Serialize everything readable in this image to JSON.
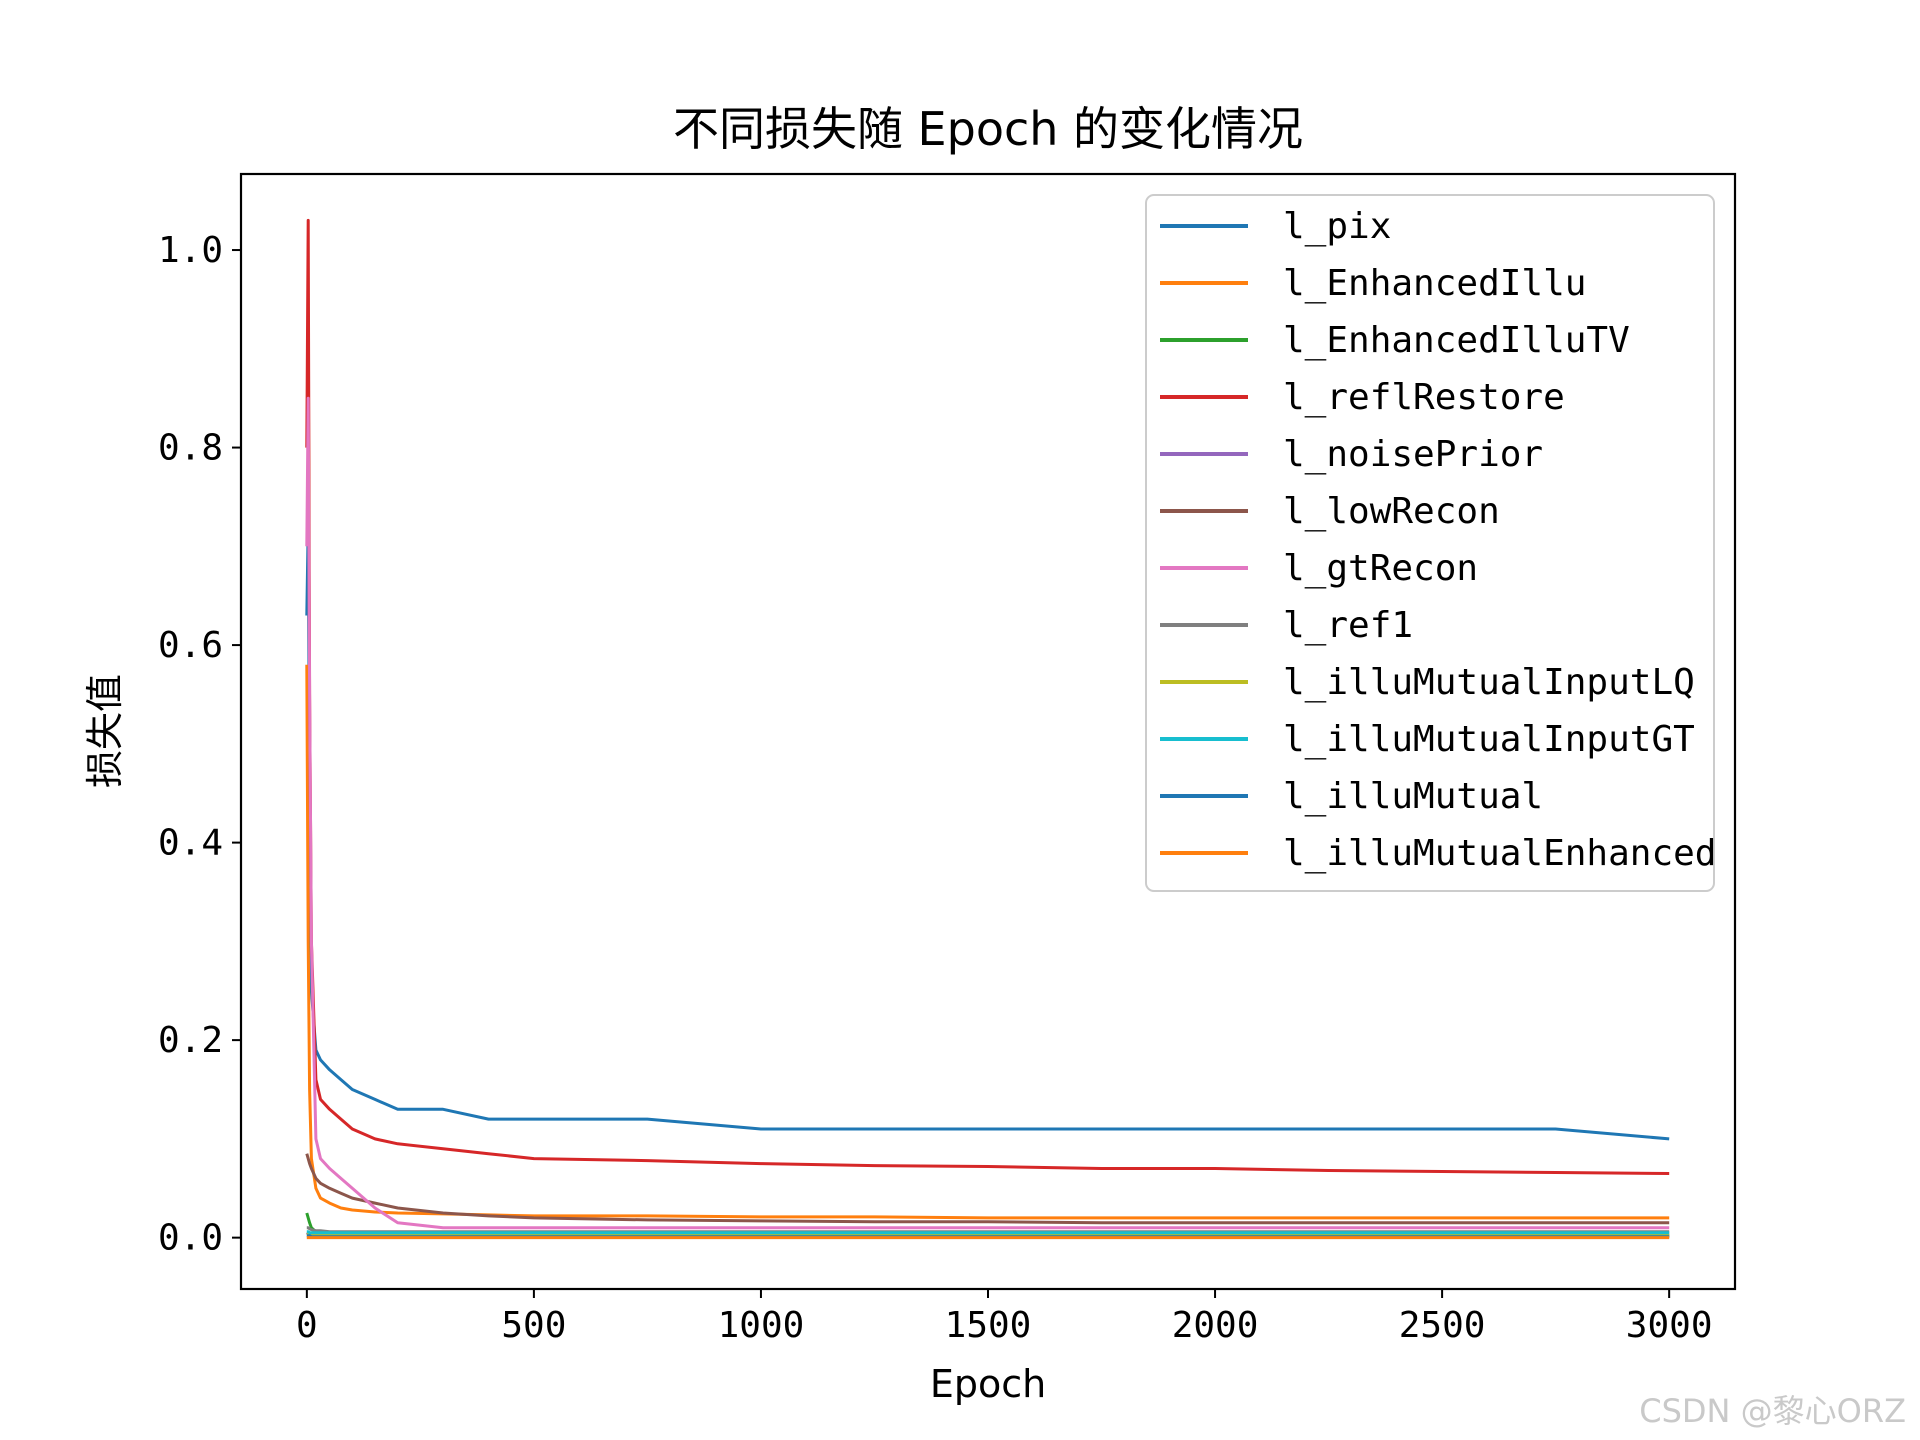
{
  "chart_data": {
    "type": "line",
    "title": "不同损失随 Epoch 的变化情况",
    "xlabel": "Epoch",
    "ylabel": "损失值",
    "xlim": [
      -145,
      3145
    ],
    "ylim": [
      -0.052,
      1.077
    ],
    "xticks": [
      0,
      500,
      1000,
      1500,
      2000,
      2500,
      3000
    ],
    "xtick_labels": [
      "0",
      "500",
      "1000",
      "1500",
      "2000",
      "2500",
      "3000"
    ],
    "yticks": [
      0.0,
      0.2,
      0.4,
      0.6,
      0.8,
      1.0
    ],
    "ytick_labels": [
      "0.0",
      "0.2",
      "0.4",
      "0.6",
      "0.8",
      "1.0"
    ],
    "grid": false,
    "legend_position": "upper right",
    "x": [
      0,
      3,
      6,
      10,
      20,
      30,
      50,
      75,
      100,
      150,
      200,
      300,
      400,
      500,
      750,
      1000,
      1250,
      1500,
      1750,
      2000,
      2250,
      2500,
      2750,
      3000
    ],
    "series": [
      {
        "name": "l_pix",
        "color": "#1f77b4",
        "values": [
          0.63,
          0.72,
          0.45,
          0.25,
          0.19,
          0.18,
          0.17,
          0.16,
          0.15,
          0.14,
          0.13,
          0.13,
          0.12,
          0.12,
          0.12,
          0.11,
          0.11,
          0.11,
          0.11,
          0.11,
          0.11,
          0.11,
          0.11,
          0.1
        ]
      },
      {
        "name": "l_EnhancedIllu",
        "color": "#ff7f0e",
        "values": [
          0.58,
          0.3,
          0.15,
          0.08,
          0.05,
          0.04,
          0.035,
          0.03,
          0.028,
          0.026,
          0.025,
          0.024,
          0.023,
          0.022,
          0.022,
          0.021,
          0.021,
          0.02,
          0.02,
          0.02,
          0.02,
          0.02,
          0.02,
          0.02
        ]
      },
      {
        "name": "l_EnhancedIlluTV",
        "color": "#2ca02c",
        "values": [
          0.025,
          0.02,
          0.015,
          0.01,
          0.006,
          0.004,
          0.003,
          0.002,
          0.002,
          0.002,
          0.002,
          0.002,
          0.002,
          0.002,
          0.002,
          0.002,
          0.002,
          0.002,
          0.002,
          0.002,
          0.002,
          0.002,
          0.002,
          0.002
        ]
      },
      {
        "name": "l_reflRestore",
        "color": "#d62728",
        "values": [
          0.8,
          1.03,
          0.55,
          0.3,
          0.16,
          0.14,
          0.13,
          0.12,
          0.11,
          0.1,
          0.095,
          0.09,
          0.085,
          0.08,
          0.078,
          0.075,
          0.073,
          0.072,
          0.07,
          0.07,
          0.068,
          0.067,
          0.066,
          0.065
        ]
      },
      {
        "name": "l_noisePrior",
        "color": "#9467bd",
        "values": [
          0.005,
          0.004,
          0.003,
          0.003,
          0.002,
          0.002,
          0.002,
          0.002,
          0.002,
          0.002,
          0.002,
          0.002,
          0.002,
          0.002,
          0.002,
          0.002,
          0.002,
          0.002,
          0.002,
          0.002,
          0.002,
          0.002,
          0.002,
          0.002
        ]
      },
      {
        "name": "l_lowRecon",
        "color": "#8c564b",
        "values": [
          0.085,
          0.08,
          0.075,
          0.07,
          0.06,
          0.055,
          0.05,
          0.045,
          0.04,
          0.035,
          0.03,
          0.025,
          0.022,
          0.02,
          0.018,
          0.017,
          0.016,
          0.016,
          0.015,
          0.015,
          0.015,
          0.015,
          0.015,
          0.015
        ]
      },
      {
        "name": "l_gtRecon",
        "color": "#e377c2",
        "values": [
          0.7,
          0.85,
          0.55,
          0.3,
          0.1,
          0.08,
          0.07,
          0.06,
          0.05,
          0.03,
          0.015,
          0.01,
          0.01,
          0.01,
          0.01,
          0.01,
          0.01,
          0.01,
          0.01,
          0.01,
          0.01,
          0.01,
          0.01,
          0.01
        ]
      },
      {
        "name": "l_ref1",
        "color": "#7f7f7f",
        "values": [
          0.01,
          0.01,
          0.009,
          0.008,
          0.007,
          0.007,
          0.006,
          0.006,
          0.006,
          0.006,
          0.006,
          0.006,
          0.006,
          0.006,
          0.006,
          0.006,
          0.006,
          0.006,
          0.006,
          0.006,
          0.006,
          0.006,
          0.006,
          0.006
        ]
      },
      {
        "name": "l_illuMutualInputLQ",
        "color": "#bcbd22",
        "values": [
          0.004,
          0.004,
          0.003,
          0.003,
          0.003,
          0.003,
          0.003,
          0.003,
          0.003,
          0.003,
          0.003,
          0.003,
          0.003,
          0.003,
          0.003,
          0.003,
          0.003,
          0.003,
          0.003,
          0.003,
          0.003,
          0.003,
          0.003,
          0.003
        ]
      },
      {
        "name": "l_illuMutualInputGT",
        "color": "#17becf",
        "values": [
          0.006,
          0.006,
          0.005,
          0.005,
          0.005,
          0.005,
          0.005,
          0.005,
          0.005,
          0.005,
          0.005,
          0.005,
          0.005,
          0.005,
          0.005,
          0.005,
          0.005,
          0.005,
          0.005,
          0.005,
          0.005,
          0.005,
          0.005,
          0.005
        ]
      },
      {
        "name": "l_illuMutual",
        "color": "#1f77b4",
        "values": [
          0.002,
          0.002,
          0.002,
          0.001,
          0.001,
          0.001,
          0.001,
          0.001,
          0.001,
          0.001,
          0.001,
          0.001,
          0.001,
          0.001,
          0.001,
          0.001,
          0.001,
          0.001,
          0.001,
          0.001,
          0.001,
          0.001,
          0.001,
          0.001
        ]
      },
      {
        "name": "l_illuMutualEnhanced",
        "color": "#ff7f0e",
        "values": [
          0.0,
          0.0,
          0.0,
          0.0,
          0.0,
          0.0,
          0.0,
          0.0,
          0.0,
          0.0,
          0.0,
          0.0,
          0.0,
          0.0,
          0.0,
          0.0,
          0.0,
          0.0,
          0.0,
          0.0,
          0.0,
          0.0,
          0.0,
          0.0
        ]
      }
    ]
  },
  "watermark": "CSDN @黎心ORZ"
}
